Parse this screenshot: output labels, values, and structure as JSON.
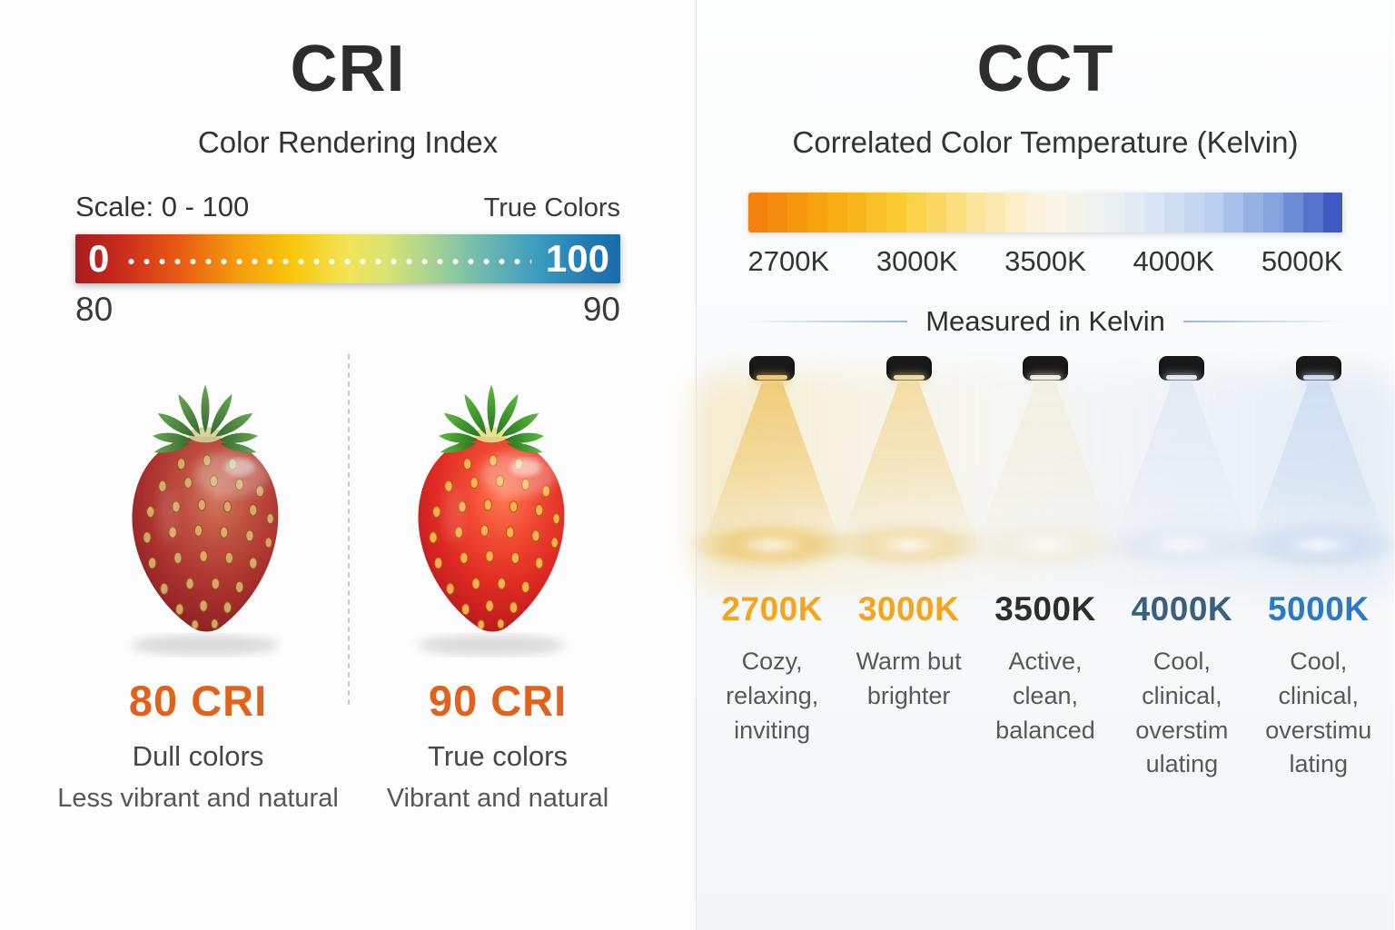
{
  "left": {
    "title": "CRI",
    "subtitle": "Color Rendering Index",
    "scale_label": "Scale: 0 - 100",
    "true_colors_label": "True Colors",
    "bar": {
      "start_label": "0",
      "end_label": "100",
      "start_color": "#A81B1E",
      "end_color": "#1A6DAB",
      "gradient_stops": [
        "#A81B1E",
        "#E85A14",
        "#F8C70C",
        "#F2E457",
        "#A9D392",
        "#3A9CC0",
        "#1A6DAB"
      ]
    },
    "bar_below_left": "80",
    "bar_below_right": "90",
    "accent_color": "#E2611B",
    "comparisons": [
      {
        "cri_label": "80 CRI",
        "quality": "Dull colors",
        "description": "Less vibrant and natural"
      },
      {
        "cri_label": "90 CRI",
        "quality": "True colors",
        "description": "Vibrant and natural"
      }
    ]
  },
  "right": {
    "title": "CCT",
    "subtitle": "Correlated Color Temperature (Kelvin)",
    "scale_labels": [
      "2700K",
      "3000K",
      "3500K",
      "4000K",
      "5000K"
    ],
    "measured_label": "Measured in Kelvin",
    "bar": {
      "segments": 30,
      "stops": [
        {
          "t": 0.0,
          "color": "#F5810E"
        },
        {
          "t": 0.12,
          "color": "#F8A80E"
        },
        {
          "t": 0.25,
          "color": "#FBCC33"
        },
        {
          "t": 0.38,
          "color": "#FCE49B"
        },
        {
          "t": 0.5,
          "color": "#FDF6E4"
        },
        {
          "t": 0.6,
          "color": "#EEF2F2"
        },
        {
          "t": 0.7,
          "color": "#D8E4F5"
        },
        {
          "t": 0.8,
          "color": "#B7CDEF"
        },
        {
          "t": 0.9,
          "color": "#82A2DE"
        },
        {
          "t": 1.0,
          "color": "#3E5BC3"
        }
      ]
    },
    "columns": [
      {
        "kelvin": "2700K",
        "kelvin_color": "#F6A41C",
        "beam_color": "#F0C96E",
        "description": "Cozy,\nrelaxing,\ninviting"
      },
      {
        "kelvin": "3000K",
        "kelvin_color": "#F6A41C",
        "beam_color": "#F2DA9C",
        "description": "Warm but\nbrighter"
      },
      {
        "kelvin": "3500K",
        "kelvin_color": "#2E2E2E",
        "beam_color": "#F2EEDF",
        "description": "Active,\nclean,\nbalanced"
      },
      {
        "kelvin": "4000K",
        "kelvin_color": "#3A607E",
        "beam_color": "#E2E9F1",
        "description": "Cool,\nclinical,\noverstim\nulating"
      },
      {
        "kelvin": "5000K",
        "kelvin_color": "#2B7AC6",
        "beam_color": "#CCDDF2",
        "description": "Cool,\nclinical,\noverstimu\nlating"
      }
    ]
  }
}
